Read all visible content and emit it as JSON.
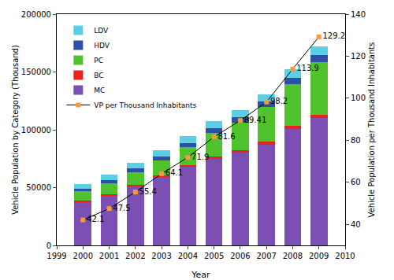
{
  "chart_data": {
    "type": "bar",
    "stacked": true,
    "x_label": "Year",
    "y_label": "Vehicle Population by Category (Thousand)",
    "y2_label": "Vehicle Population per Thousand Inhabitants",
    "x": [
      2000,
      2001,
      2002,
      2003,
      2004,
      2005,
      2006,
      2007,
      2008,
      2009
    ],
    "xlim": [
      1999,
      2010
    ],
    "xticks": [
      1999,
      2000,
      2001,
      2002,
      2003,
      2004,
      2005,
      2006,
      2007,
      2008,
      2009,
      2010
    ],
    "ylim": [
      0,
      200000
    ],
    "yticks": [
      0,
      50000,
      100000,
      150000,
      200000
    ],
    "y2lim": [
      30,
      140
    ],
    "y2ticks": [
      40,
      60,
      80,
      100,
      120,
      140
    ],
    "legend": "upper left",
    "grid": false,
    "series": [
      {
        "name": "MC",
        "color": "#7b4fb3",
        "values": [
          37500,
          43000,
          51000,
          59000,
          68000,
          75000,
          80000,
          87000,
          101000,
          110000
        ]
      },
      {
        "name": "BC",
        "color": "#e8231c",
        "values": [
          1200,
          1300,
          1400,
          1500,
          1700,
          2000,
          2300,
          2500,
          2600,
          2800
        ]
      },
      {
        "name": "PC",
        "color": "#4fc22d",
        "values": [
          8000,
          9500,
          11000,
          13000,
          15000,
          20000,
          24000,
          30000,
          36000,
          46000
        ]
      },
      {
        "name": "HDV",
        "color": "#2f4fa6",
        "values": [
          2500,
          2800,
          3200,
          3500,
          4000,
          4300,
          4500,
          4800,
          5500,
          6000
        ]
      },
      {
        "name": "LDV",
        "color": "#5ccfe6",
        "values": [
          4000,
          4400,
          5000,
          5500,
          5800,
          6000,
          6500,
          6000,
          7000,
          7500
        ]
      },
      {
        "name": "VP per Thousand Inhabitants",
        "type": "line",
        "axis": "y2",
        "color": "#000000",
        "marker": "square",
        "line_style": "solid",
        "data_labels": true,
        "values": [
          42.1,
          47.5,
          55.4,
          64.1,
          71.9,
          81.6,
          89.41,
          98.2,
          113.9,
          129.2
        ]
      }
    ]
  }
}
